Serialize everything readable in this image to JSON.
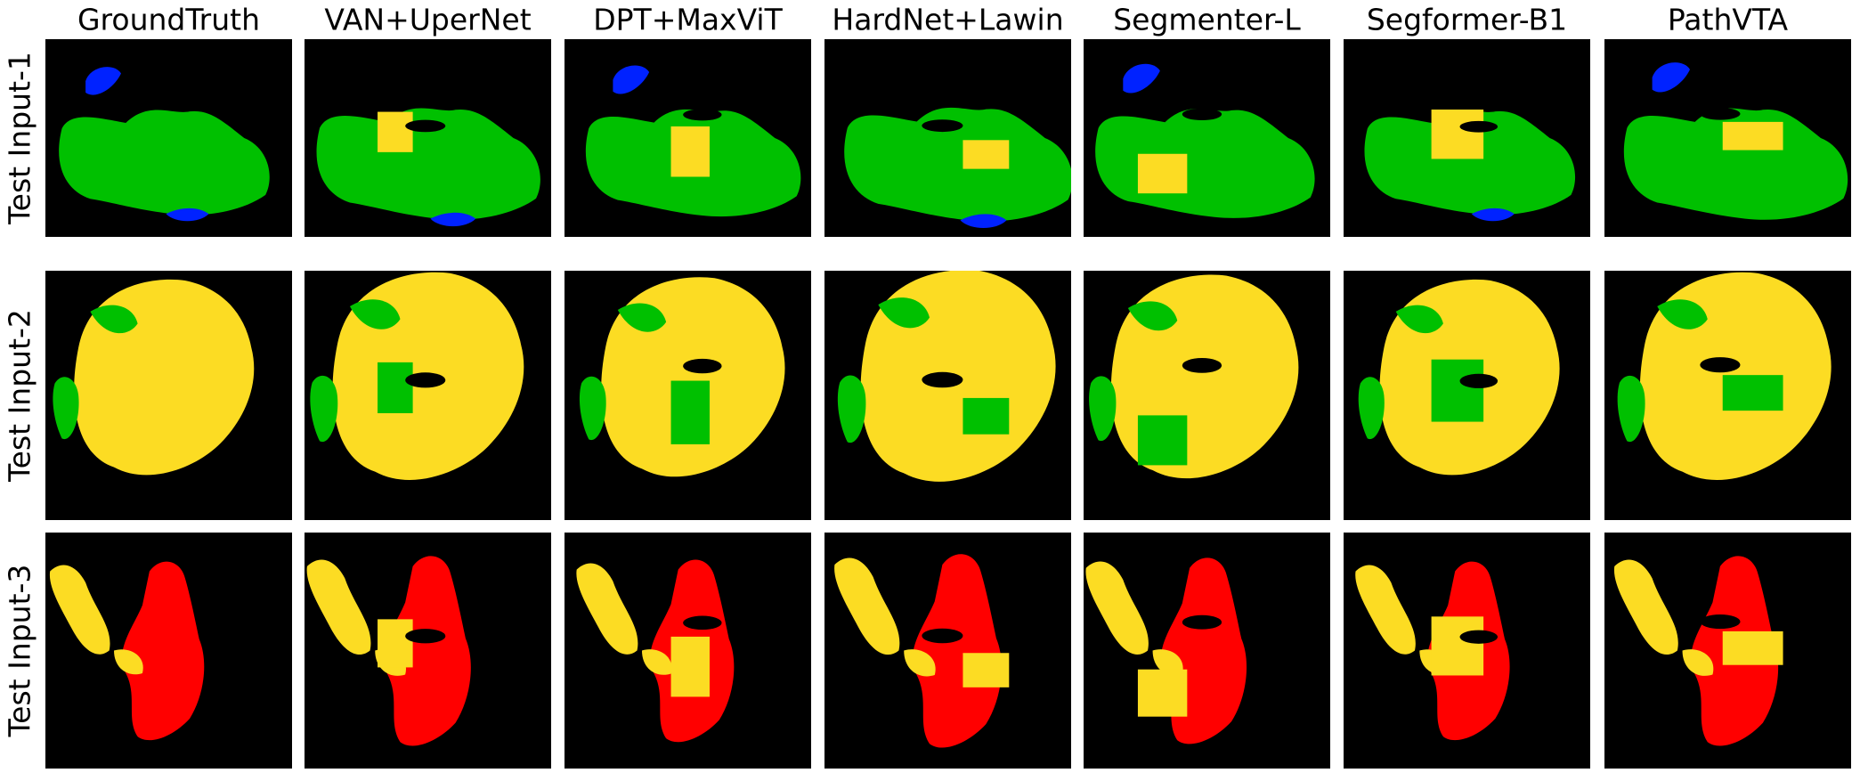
{
  "figure": {
    "columns": [
      "GroundTruth",
      "VAN+UperNet",
      "DPT+MaxViT",
      "HardNet+Lawin",
      "Segmenter-L",
      "Segformer-B1",
      "PathVTA"
    ],
    "rows": [
      "Test Input-1",
      "Test Input-2",
      "Test Input-3"
    ]
  }
}
